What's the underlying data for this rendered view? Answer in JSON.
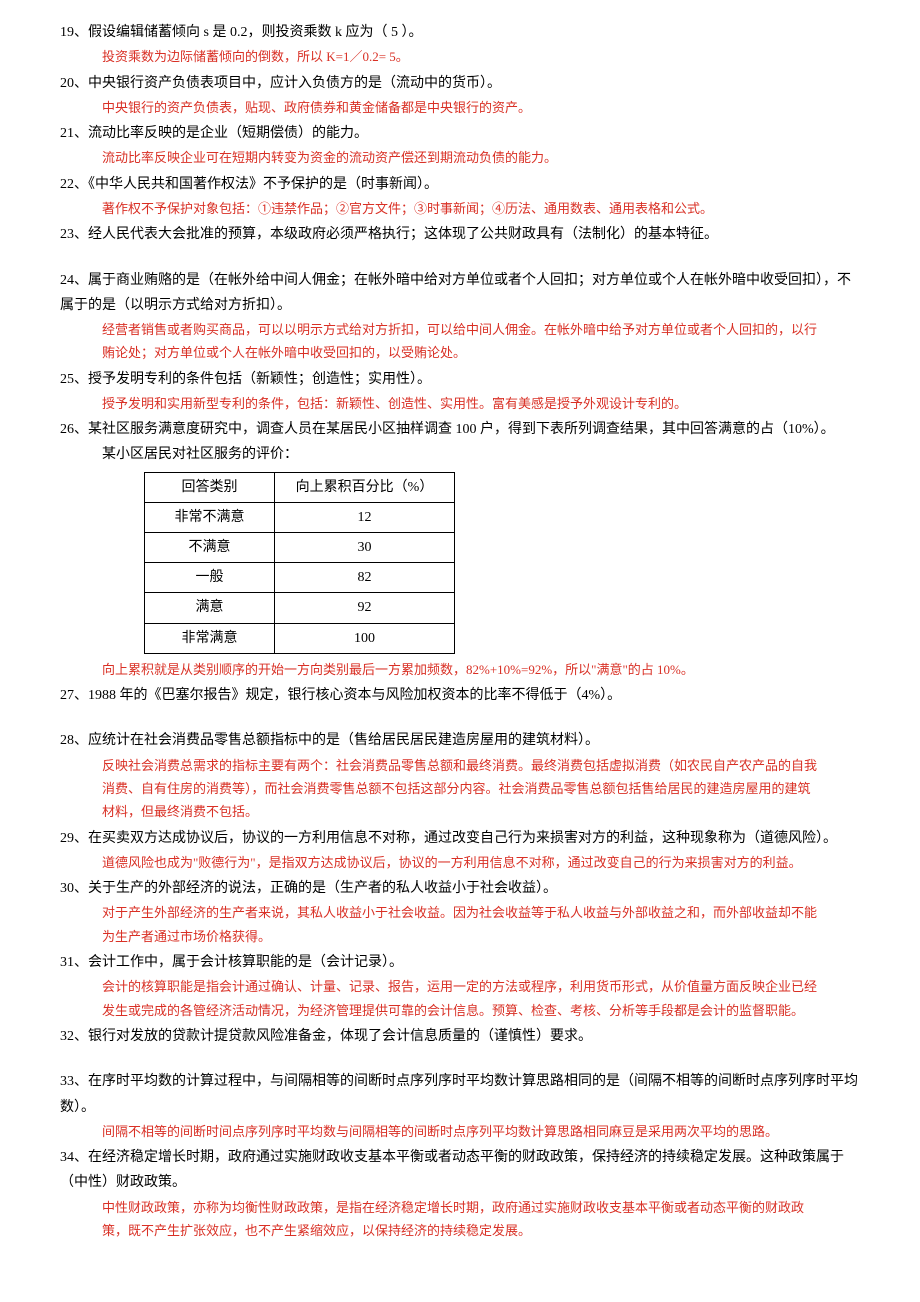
{
  "items": [
    {
      "num": "19",
      "question": "19、假设编辑储蓄倾向 s 是 0.2，则投资乘数 k 应为（ 5 ）。",
      "explanation": [
        "投资乘数为边际储蓄倾向的倒数，所以 K=1／0.2= 5。"
      ]
    },
    {
      "num": "20",
      "question": "20、中央银行资产负债表项目中，应计入负债方的是（流动中的货币）。",
      "explanation": [
        "中央银行的资产负债表，贴现、政府债券和黄金储备都是中央银行的资产。"
      ]
    },
    {
      "num": "21",
      "question": "21、流动比率反映的是企业（短期偿债）的能力。",
      "explanation": [
        "流动比率反映企业可在短期内转变为资金的流动资产偿还到期流动负债的能力。"
      ]
    },
    {
      "num": "22",
      "question": "22、《中华人民共和国著作权法》不予保护的是（时事新闻）。",
      "explanation": [
        "著作权不予保护对象包括：①违禁作品；②官方文件；③时事新闻；④历法、通用数表、通用表格和公式。"
      ]
    },
    {
      "num": "23",
      "question": "23、经人民代表大会批准的预算，本级政府必须严格执行；这体现了公共财政具有（法制化）的基本特征。",
      "explanation": []
    },
    {
      "num": "24",
      "question": "24、属于商业贿赂的是（在帐外给中间人佣金；在帐外暗中给对方单位或者个人回扣；对方单位或个人在帐外暗中收受回扣），不属于的是（以明示方式给对方折扣）。",
      "explanation": [
        "经营者销售或者购买商品，可以以明示方式给对方折扣，可以给中间人佣金。在帐外暗中给予对方单位或者个人回扣的，以行",
        "贿论处；对方单位或个人在帐外暗中收受回扣的，以受贿论处。"
      ]
    },
    {
      "num": "25",
      "question": "25、授予发明专利的条件包括（新颖性；创造性；实用性）。",
      "explanation": [
        "授予发明和实用新型专利的条件，包括：新颖性、创造性、实用性。富有美感是授予外观设计专利的。"
      ]
    },
    {
      "num": "26",
      "question": "26、某社区服务满意度研究中，调查人员在某居民小区抽样调查 100 户，得到下表所列调查结果，其中回答满意的占（10%）。",
      "table_caption": "某小区居民对社区服务的评价：",
      "table": {
        "headers": [
          "回答类别",
          "向上累积百分比（%）"
        ],
        "rows": [
          [
            "非常不满意",
            "12"
          ],
          [
            "不满意",
            "30"
          ],
          [
            "一般",
            "82"
          ],
          [
            "满意",
            "92"
          ],
          [
            "非常满意",
            "100"
          ]
        ]
      },
      "explanation": [
        "向上累积就是从类别顺序的开始一方向类别最后一方累加频数，82%+10%=92%，所以\"满意\"的占 10%。"
      ]
    },
    {
      "num": "27",
      "question": "27、1988 年的《巴塞尔报告》规定，银行核心资本与风险加权资本的比率不得低于（4%）。",
      "explanation": []
    },
    {
      "num": "28",
      "question": "28、应统计在社会消费品零售总额指标中的是（售给居民居民建造房屋用的建筑材料）。",
      "explanation": [
        "反映社会消费总需求的指标主要有两个：社会消费品零售总额和最终消费。最终消费包括虚拟消费（如农民自产农产品的自我",
        "消费、自有住房的消费等），而社会消费零售总额不包括这部分内容。社会消费品零售总额包括售给居民的建造房屋用的建筑",
        "材料，但最终消费不包括。"
      ]
    },
    {
      "num": "29",
      "question": "29、在买卖双方达成协议后，协议的一方利用信息不对称，通过改变自己行为来损害对方的利益，这种现象称为（道德风险）。",
      "explanation": [
        "道德风险也成为\"败德行为\"，是指双方达成协议后，协议的一方利用信息不对称，通过改变自己的行为来损害对方的利益。"
      ]
    },
    {
      "num": "30",
      "question": "30、关于生产的外部经济的说法，正确的是（生产者的私人收益小于社会收益）。",
      "explanation": [
        "对于产生外部经济的生产者来说，其私人收益小于社会收益。因为社会收益等于私人收益与外部收益之和，而外部收益却不能",
        "为生产者通过市场价格获得。"
      ]
    },
    {
      "num": "31",
      "question": "31、会计工作中，属于会计核算职能的是（会计记录）。",
      "explanation": [
        "会计的核算职能是指会计通过确认、计量、记录、报告，运用一定的方法或程序，利用货币形式，从价值量方面反映企业已经",
        "发生或完成的各管经济活动情况，为经济管理提供可靠的会计信息。预算、检查、考核、分析等手段都是会计的监督职能。"
      ]
    },
    {
      "num": "32",
      "question": "32、银行对发放的贷款计提贷款风险准备金，体现了会计信息质量的（谨慎性）要求。",
      "explanation": []
    },
    {
      "num": "33",
      "question": "33、在序时平均数的计算过程中，与间隔相等的间断时点序列序时平均数计算思路相同的是（间隔不相等的间断时点序列序时平均数）。",
      "explanation": [
        "间隔不相等的间断时间点序列序时平均数与间隔相等的间断时点序列平均数计算思路相同麻豆是采用两次平均的思路。"
      ]
    },
    {
      "num": "34",
      "question": "34、在经济稳定增长时期，政府通过实施财政收支基本平衡或者动态平衡的财政政策，保持经济的持续稳定发展。这种政策属于（中性）财政政策。",
      "explanation": [
        "中性财政政策，亦称为均衡性财政政策，是指在经济稳定增长时期，政府通过实施财政收支基本平衡或者动态平衡的财政政",
        "策，既不产生扩张效应，也不产生紧缩效应，以保持经济的持续稳定发展。"
      ]
    }
  ]
}
